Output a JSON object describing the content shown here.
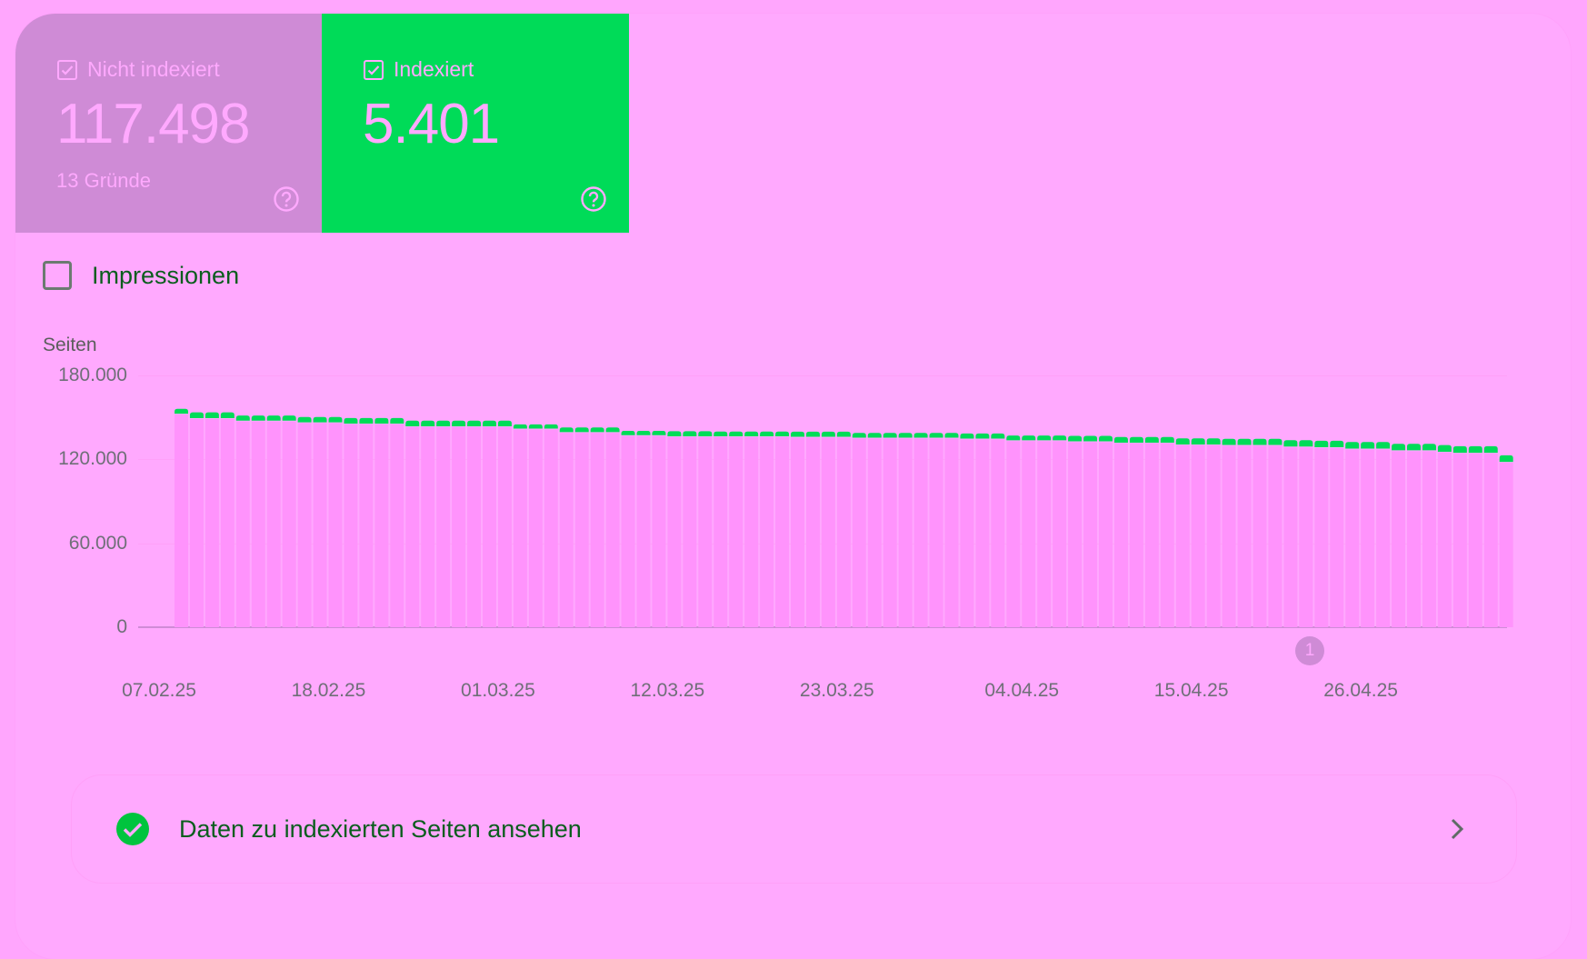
{
  "tiles": [
    {
      "label": "Nicht indexiert",
      "value": "117.498",
      "sub": "13 Gründe",
      "checked": true,
      "color": "#cf8bd6"
    },
    {
      "label": "Indexiert",
      "value": "5.401",
      "sub": "",
      "checked": true,
      "color": "#00db58"
    }
  ],
  "impressions": {
    "label": "Impressionen",
    "checked": false
  },
  "annotation": {
    "label": "1"
  },
  "link": {
    "label": "Daten zu indexierten Seiten ansehen"
  },
  "chart_data": {
    "type": "bar",
    "stacked": true,
    "title": "",
    "ylabel": "Seiten",
    "xlabel": "",
    "ylim": [
      0,
      180000
    ],
    "yticks": [
      "0",
      "60.000",
      "120.000",
      "180.000"
    ],
    "ytick_values": [
      0,
      60000,
      120000,
      180000
    ],
    "xtick_labels": [
      "07.02.25",
      "18.02.25",
      "01.03.25",
      "12.03.25",
      "23.03.25",
      "04.04.25",
      "15.04.25",
      "26.04.25"
    ],
    "xtick_index": [
      0,
      11,
      22,
      33,
      44,
      56,
      67,
      78
    ],
    "grid": true,
    "legend": "tiles above chart",
    "x_start": "07.02.25",
    "x_end": "03.05.25",
    "series": [
      {
        "name": "Nicht indexiert",
        "color": "#ff93fc",
        "values": [
          152000,
          148800,
          148800,
          148800,
          147000,
          147000,
          147000,
          147000,
          145800,
          145800,
          145800,
          144900,
          144900,
          144900,
          144900,
          143000,
          143000,
          143000,
          143000,
          143000,
          143000,
          143000,
          141300,
          141300,
          141300,
          138800,
          138800,
          138800,
          138800,
          136600,
          136600,
          136600,
          135800,
          135800,
          135800,
          135800,
          135800,
          135800,
          135800,
          135800,
          135500,
          135500,
          135500,
          135500,
          134800,
          134800,
          134800,
          134800,
          134800,
          134800,
          134800,
          134200,
          134200,
          134200,
          133000,
          133000,
          133000,
          133000,
          132200,
          132200,
          132200,
          131300,
          131300,
          131300,
          131300,
          130000,
          130000,
          130000,
          129600,
          129600,
          129600,
          129600,
          128500,
          128500,
          128000,
          128000,
          127000,
          127000,
          127000,
          125800,
          125800,
          125800,
          124800,
          124000,
          124000,
          124000,
          117498
        ]
      },
      {
        "name": "Indexiert",
        "color": "#00db58",
        "values": [
          4100,
          4800,
          4800,
          4800,
          4300,
          4300,
          4300,
          4300,
          4500,
          4500,
          4500,
          4600,
          4600,
          4600,
          4600,
          4700,
          4700,
          4700,
          4700,
          4700,
          4700,
          4700,
          3700,
          3700,
          3700,
          4000,
          4000,
          4000,
          4000,
          3800,
          3800,
          3800,
          4300,
          4300,
          4300,
          4100,
          4100,
          4100,
          4100,
          4100,
          4300,
          4300,
          4300,
          4300,
          4100,
          4100,
          4100,
          4100,
          4100,
          4100,
          4100,
          4300,
          4300,
          4300,
          4000,
          4000,
          4000,
          4000,
          4600,
          4600,
          4600,
          4700,
          4700,
          4700,
          4700,
          5000,
          5000,
          5000,
          5100,
          5100,
          5100,
          5100,
          5200,
          5200,
          5300,
          5300,
          5400,
          5400,
          5400,
          5300,
          5300,
          5300,
          5400,
          5400,
          5400,
          5400,
          5401
        ]
      }
    ]
  }
}
